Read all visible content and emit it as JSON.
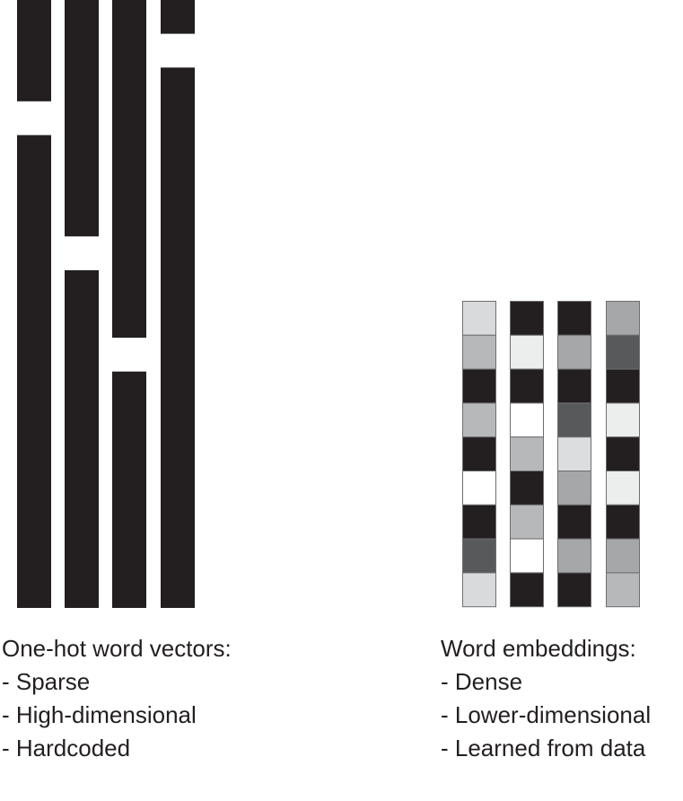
{
  "onehot": {
    "heading": "One-hot word vectors:",
    "properties": [
      "- Sparse",
      "- High-dimensional",
      "- Hardcoded"
    ],
    "vectors": [
      {
        "hot_index": 3
      },
      {
        "hot_index": 7
      },
      {
        "hot_index": 10
      },
      {
        "hot_index": 1
      }
    ],
    "vector_length": 18,
    "hot_color": "#ffffff",
    "cold_color": "#231f20"
  },
  "embeddings": {
    "heading": "Word embeddings:",
    "properties": [
      "- Dense",
      "- Lower-dimensional",
      "- Learned from data"
    ],
    "vectors": [
      {
        "cells": [
          "#d9dadb",
          "#b7b8ba",
          "#231f20",
          "#b7b8ba",
          "#231f20",
          "#ffffff",
          "#231f20",
          "#58595b",
          "#d9dadb"
        ]
      },
      {
        "cells": [
          "#231f20",
          "#eceeed",
          "#231f20",
          "#ffffff",
          "#b7b8ba",
          "#231f20",
          "#b7b8ba",
          "#ffffff",
          "#231f20"
        ]
      },
      {
        "cells": [
          "#231f20",
          "#a6a7a9",
          "#231f20",
          "#58595b",
          "#dcdddf",
          "#a6a7a9",
          "#231f20",
          "#a6a7a9",
          "#231f20"
        ]
      },
      {
        "cells": [
          "#a6a7a9",
          "#58595b",
          "#231f20",
          "#eceeed",
          "#231f20",
          "#eceeed",
          "#231f20",
          "#a6a7a9",
          "#b7b8ba"
        ]
      }
    ],
    "border_color": "#6d6e71"
  }
}
